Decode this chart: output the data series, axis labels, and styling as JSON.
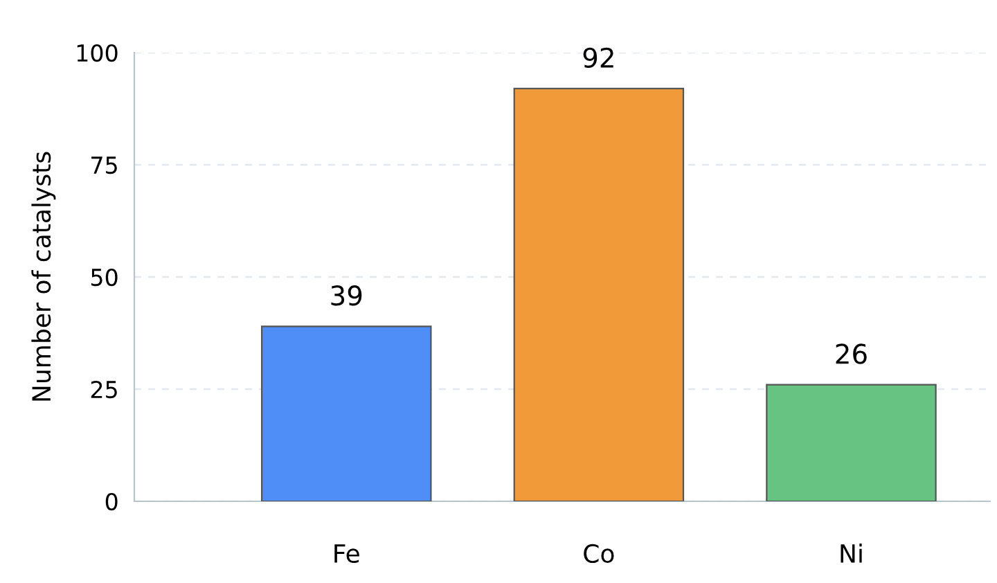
{
  "chart_data": {
    "type": "bar",
    "ylabel": "Number of catalysts",
    "categories": [
      "Fe",
      "Co",
      "Ni"
    ],
    "values": [
      39,
      92,
      26
    ],
    "colors": [
      "#4f8ef7",
      "#f09a3a",
      "#66c382"
    ],
    "ylim": [
      0,
      100
    ],
    "yticks": [
      0,
      25,
      50,
      75,
      100
    ],
    "grid": "y",
    "data_labels": true,
    "legend": false
  }
}
